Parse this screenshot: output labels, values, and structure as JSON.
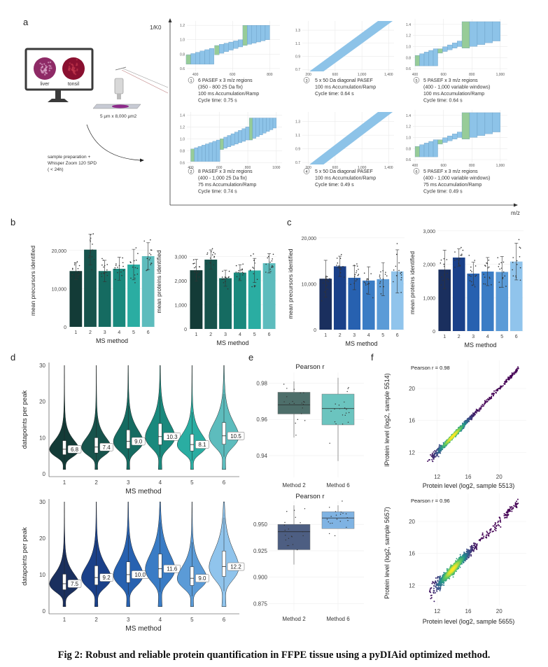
{
  "caption": "Fig 2: Robust and reliable protein quantification in FFPE tissue using a pyDIAid optimized method.",
  "panel_labels": {
    "a": "a",
    "b": "b",
    "c": "c",
    "d": "d",
    "e": "e",
    "f": "f"
  },
  "panel_a": {
    "y_axis_label": "1/K0",
    "x_axis_label": "m/z",
    "monitor_labels": [
      "liver",
      "tonsil"
    ],
    "sample_size": "5 µm x 8,000 µm2",
    "workflow": [
      "sample preparation +",
      "Whisper Zoom 120 SPD",
      " ( < 24h)"
    ],
    "colors": {
      "window": "#8dc3e8",
      "first_window": "#97cc98",
      "liver": "#8e2a66",
      "tonsil": "#8a1030"
    },
    "schemes": [
      {
        "number": "1",
        "lines": [
          "6 PASEF x 3 m/z regions",
          "(350 - 800 25 Da fix)",
          "100 ms Accumulation/Ramp",
          "Cycle time: 0.75 s"
        ],
        "xlim": [
          354,
          855
        ],
        "ylim": [
          0.56,
          1.26
        ],
        "xticks": [
          400,
          600,
          800
        ],
        "xtick_labels": [
          "400",
          "600",
          "800"
        ],
        "yticks": [
          0.6,
          0.8,
          1.0,
          1.2
        ],
        "ytick_labels": [
          "0.6",
          "0.8",
          "1.0",
          "1.2"
        ],
        "regions": [
          {
            "mz": [
              350,
              500
            ],
            "n": 6,
            "low": [
              0.66,
              0.66
            ],
            "high": [
              0.79,
              0.88
            ]
          },
          {
            "mz": [
              503,
              655
            ],
            "n": 6,
            "low": [
              0.79,
              0.9
            ],
            "high": [
              0.92,
              1.0
            ]
          },
          {
            "mz": [
              655,
              800
            ],
            "n": 6,
            "low": [
              0.92,
              1.0
            ],
            "high": [
              1.2,
              1.2
            ]
          }
        ]
      },
      {
        "number": "3",
        "lines": [
          "5 x 50 Da diagonal PASEF",
          "100 ms Accumulation/Ramp",
          "Cycle time: 0.64 s"
        ],
        "xlim": [
          110,
          1480
        ],
        "ylim": [
          0.67,
          1.44
        ],
        "xticks": [
          200,
          600,
          1000,
          1400
        ],
        "xtick_labels": [
          "200",
          "600",
          "1,000",
          "1,400"
        ],
        "yticks": [
          0.7,
          0.9,
          1.1,
          1.3
        ],
        "ytick_labels": [
          "0.7",
          "0.9",
          "1.1",
          "1.3"
        ],
        "diagonal": {
          "left_edge": [
            [
              190,
              0.65
            ],
            [
              1240,
              1.44
            ]
          ],
          "right_edge": [
            [
              400,
              0.65
            ],
            [
              1460,
              1.44
            ]
          ]
        }
      },
      {
        "number": "5",
        "lines": [
          "5 PASEF x 3 m/z regions",
          "(400 - 1,000 variable windows)",
          "100 ms Accumulation/Ramp",
          "Cycle time: 0.64 s"
        ],
        "xlim": [
          385,
          1050
        ],
        "ylim": [
          0.55,
          1.5
        ],
        "xticks": [
          400,
          600,
          800,
          1000
        ],
        "xtick_labels": [
          "400",
          "600",
          "800",
          "1,000"
        ],
        "yticks": [
          0.6,
          0.8,
          1.0,
          1.2,
          1.4
        ],
        "ytick_labels": [
          "0.6",
          "0.8",
          "1.0",
          "1.2",
          "1.4"
        ],
        "regions": [
          {
            "mz": [
              400,
              560
            ],
            "n": 5,
            "low": [
              0.65,
              0.65
            ],
            "high": [
              0.84,
              0.96
            ]
          },
          {
            "mz": [
              560,
              730
            ],
            "n": 5,
            "low": [
              0.88,
              1.0
            ],
            "high": [
              0.96,
              1.1
            ]
          },
          {
            "mz": [
              730,
              1000
            ],
            "n": 5,
            "low": [
              0.97,
              1.1
            ],
            "high": [
              1.45,
              1.45
            ]
          }
        ]
      },
      {
        "number": "2",
        "lines": [
          "8 PASEF x 3 m/z regions",
          "(400 - 1,000 25 Da fix)",
          "75 ms Accumulation/Ramp",
          "Cycle time: 0.74 s"
        ],
        "xlim": [
          373,
          1040
        ],
        "ylim": [
          0.57,
          1.45
        ],
        "xticks": [
          400,
          600,
          800,
          1000
        ],
        "xtick_labels": [
          "400",
          "600",
          "800",
          "1000"
        ],
        "yticks": [
          0.6,
          0.8,
          1.0,
          1.2,
          1.4
        ],
        "ytick_labels": [
          "0.6",
          "0.8",
          "1.0",
          "1.2",
          "1.4"
        ],
        "regions": [
          {
            "mz": [
              400,
              605
            ],
            "n": 8,
            "low": [
              0.62,
              0.62
            ],
            "high": [
              0.83,
              0.98
            ]
          },
          {
            "mz": [
              605,
              810
            ],
            "n": 8,
            "low": [
              0.82,
              0.98
            ],
            "high": [
              1.0,
              1.2
            ]
          },
          {
            "mz": [
              810,
              1000
            ],
            "n": 8,
            "low": [
              0.98,
              1.18
            ],
            "high": [
              1.35,
              1.35
            ]
          }
        ]
      },
      {
        "number": "4",
        "lines": [
          "5 x 50 Da diagonal PASEF",
          "100 ms Accumulation/Ramp",
          "Cycle time: 0.49 s"
        ],
        "xlim": [
          110,
          1480
        ],
        "ylim": [
          0.67,
          1.44
        ],
        "xticks": [
          200,
          600,
          1000,
          1400
        ],
        "xtick_labels": [
          "200",
          "600",
          "1,000",
          "1,400"
        ],
        "yticks": [
          0.7,
          0.9,
          1.1,
          1.3
        ],
        "ytick_labels": [
          "0.7",
          "0.9",
          "1.1",
          "1.3"
        ],
        "diagonal": {
          "left_edge": [
            [
              190,
              0.65
            ],
            [
              1240,
              1.44
            ]
          ],
          "right_edge": [
            [
              400,
              0.65
            ],
            [
              1460,
              1.44
            ]
          ]
        }
      },
      {
        "number": "6",
        "lines": [
          "5 PASEF x 3 m/z regions",
          "(400 - 1,000 variable windows)",
          "75 ms Accumulation/Ramp",
          "Cycle time: 0.49 s"
        ],
        "xlim": [
          385,
          1050
        ],
        "ylim": [
          0.55,
          1.5
        ],
        "xticks": [
          400,
          600,
          800,
          1000
        ],
        "xtick_labels": [
          "400",
          "600",
          "800",
          "1,000"
        ],
        "yticks": [
          0.6,
          0.8,
          1.0,
          1.2,
          1.4
        ],
        "ytick_labels": [
          "0.6",
          "0.8",
          "1.0",
          "1.2",
          "1.4"
        ],
        "regions": [
          {
            "mz": [
              400,
              560
            ],
            "n": 5,
            "low": [
              0.65,
              0.65
            ],
            "high": [
              0.84,
              0.96
            ]
          },
          {
            "mz": [
              560,
              730
            ],
            "n": 5,
            "low": [
              0.88,
              1.0
            ],
            "high": [
              0.96,
              1.1
            ]
          },
          {
            "mz": [
              730,
              1000
            ],
            "n": 5,
            "low": [
              0.97,
              1.1
            ],
            "high": [
              1.45,
              1.45
            ]
          }
        ]
      }
    ]
  },
  "chart_data": [
    {
      "id": "b1",
      "type": "bar",
      "categories": [
        "1",
        "2",
        "3",
        "4",
        "5",
        "6"
      ],
      "values": [
        14600,
        20200,
        14600,
        15200,
        16300,
        18500
      ],
      "sd": [
        2200,
        4000,
        2800,
        3000,
        4000,
        3500
      ],
      "xlabel": "MS method",
      "ylabel": "mean precursors identified",
      "ylim": [
        0,
        26000
      ],
      "yticks": [
        0,
        10000,
        20000
      ],
      "ytick_labels": [
        "0",
        "10,000",
        "20,000"
      ],
      "grid": true,
      "colors": [
        "#133b37",
        "#17534c",
        "#156b61",
        "#1a897d",
        "#2aada2",
        "#5dbcbd"
      ]
    },
    {
      "id": "b2",
      "type": "bar",
      "categories": [
        "1",
        "2",
        "3",
        "4",
        "5",
        "6"
      ],
      "values": [
        2430,
        2870,
        2100,
        2330,
        2420,
        2720
      ],
      "sd": [
        450,
        400,
        330,
        330,
        500,
        400
      ],
      "xlabel": "MS method",
      "ylabel": "mean proteins identified",
      "ylim": [
        0,
        4200
      ],
      "yticks": [
        0,
        1000,
        2000,
        3000
      ],
      "ytick_labels": [
        "0",
        "1,000",
        "2,000",
        "3,000"
      ],
      "grid": true,
      "colors": [
        "#133b37",
        "#17534c",
        "#156b61",
        "#1a897d",
        "#2aada2",
        "#5dbcbd"
      ]
    },
    {
      "id": "c1",
      "type": "bar",
      "categories": [
        "1",
        "2",
        "3",
        "4",
        "5",
        "6"
      ],
      "values": [
        11100,
        13800,
        11300,
        10700,
        11000,
        12700
      ],
      "sd": [
        4000,
        2200,
        2600,
        3000,
        3600,
        4700
      ],
      "xlabel": "MS method",
      "ylabel": "mean precursors identified",
      "ylim": [
        0,
        21500
      ],
      "yticks": [
        0,
        10000,
        20000
      ],
      "ytick_labels": [
        "0",
        "10,000",
        "20,000"
      ],
      "grid": true,
      "colors": [
        "#1a2f5e",
        "#1a4089",
        "#2761b0",
        "#3a7cc5",
        "#5b9bd7",
        "#90c4ec"
      ]
    },
    {
      "id": "c2",
      "type": "bar",
      "categories": [
        "1",
        "2",
        "3",
        "4",
        "5",
        "6"
      ],
      "values": [
        1840,
        2200,
        1720,
        1780,
        1770,
        2080
      ],
      "sd": [
        580,
        260,
        340,
        420,
        460,
        550
      ],
      "xlabel": "MS method",
      "ylabel": "mean proteins identified",
      "ylim": [
        0,
        3100
      ],
      "yticks": [
        0,
        1000,
        2000,
        3000
      ],
      "ytick_labels": [
        "0",
        "1,000",
        "2,000",
        "3,000"
      ],
      "grid": true,
      "colors": [
        "#1a2f5e",
        "#1a4089",
        "#2761b0",
        "#3a7cc5",
        "#5b9bd7",
        "#90c4ec"
      ]
    },
    {
      "id": "d1",
      "type": "violin",
      "categories": [
        "1",
        "2",
        "3",
        "4",
        "5",
        "6"
      ],
      "medians": [
        6.8,
        7.4,
        9.0,
        10.3,
        8.1,
        10.5
      ],
      "median_labels": [
        "6.8",
        "7.4",
        "9.0",
        "10.3",
        "8.1",
        "10.5"
      ],
      "xlabel": "MS method",
      "ylabel": "datapoints per peak",
      "ylim": [
        0,
        30
      ],
      "yticks": [
        0,
        10,
        20,
        30
      ],
      "ytick_labels": [
        "0",
        "10",
        "20",
        "30"
      ],
      "colors": [
        "#133b37",
        "#17534c",
        "#156b61",
        "#1a897d",
        "#2aada2",
        "#5dbcbd"
      ]
    },
    {
      "id": "d2",
      "type": "violin",
      "categories": [
        "1",
        "2",
        "3",
        "4",
        "5",
        "6"
      ],
      "medians": [
        7.5,
        9.2,
        10.0,
        11.6,
        9.0,
        12.2
      ],
      "median_labels": [
        "7.5",
        "9.2",
        "10.0",
        "11.6",
        "9.0",
        "12.2"
      ],
      "xlabel": "MS method",
      "ylabel": "datapoints per peak",
      "ylim": [
        0,
        30
      ],
      "yticks": [
        0,
        10,
        20,
        30
      ],
      "ytick_labels": [
        "0",
        "10",
        "20",
        "30"
      ],
      "colors": [
        "#1a2f5e",
        "#1a4089",
        "#2761b0",
        "#3a7cc5",
        "#5b9bd7",
        "#90c4ec"
      ]
    },
    {
      "id": "e1",
      "type": "box",
      "title": "Pearson r",
      "categories": [
        "Method 2",
        "Method 6"
      ],
      "boxes": [
        {
          "q1": 0.963,
          "median": 0.968,
          "q3": 0.975,
          "whisker_low": 0.95,
          "whisker_high": 0.981
        },
        {
          "q1": 0.957,
          "median": 0.966,
          "q3": 0.974,
          "whisker_low": 0.937,
          "whisker_high": 0.983
        }
      ],
      "ylim": [
        0.928,
        0.986
      ],
      "yticks": [
        0.94,
        0.96,
        0.98
      ],
      "ytick_labels": [
        "0.94",
        "0.96",
        "0.98"
      ],
      "colors": [
        "#4d6e6a",
        "#6bc4bf"
      ]
    },
    {
      "id": "e2",
      "type": "box",
      "title": "Pearson r",
      "categories": [
        "Method 2",
        "Method 6"
      ],
      "boxes": [
        {
          "q1": 0.926,
          "median": 0.943,
          "q3": 0.95,
          "whisker_low": 0.912,
          "whisker_high": 0.968
        },
        {
          "q1": 0.946,
          "median": 0.956,
          "q3": 0.962,
          "whisker_low": 0.946,
          "whisker_high": 0.968
        }
      ],
      "ylim": [
        0.868,
        0.972
      ],
      "yticks": [
        0.875,
        0.9,
        0.925,
        0.95
      ],
      "ytick_labels": [
        "0.875",
        "0.900",
        "0.925",
        "0.950"
      ],
      "colors": [
        "#4d5e82",
        "#7fb3e3"
      ]
    },
    {
      "id": "f1",
      "type": "scatter",
      "annotation": "Pearson r = 0.98",
      "xlabel": "Protein level (log2, sample 5513)",
      "ylabel": "lProtein level (log2, sample 5514)",
      "xlim": [
        9.5,
        23.5
      ],
      "ylim": [
        9.5,
        23.5
      ],
      "xticks": [
        12,
        16,
        20
      ],
      "yticks": [
        12,
        16,
        20
      ],
      "tick_labels": [
        "12",
        "16",
        "20"
      ],
      "r": 0.98,
      "colormap": "viridis"
    },
    {
      "id": "f2",
      "type": "scatter",
      "annotation": "Pearson r = 0.96",
      "xlabel": "Protein level (log2, sample 5655)",
      "ylabel": "Protein level (log2, sample 5657)",
      "xlim": [
        9.5,
        23.5
      ],
      "ylim": [
        9.5,
        23.5
      ],
      "xticks": [
        12,
        16,
        20
      ],
      "yticks": [
        12,
        16,
        20
      ],
      "tick_labels": [
        "12",
        "16",
        "20"
      ],
      "r": 0.96,
      "colormap": "viridis"
    }
  ]
}
